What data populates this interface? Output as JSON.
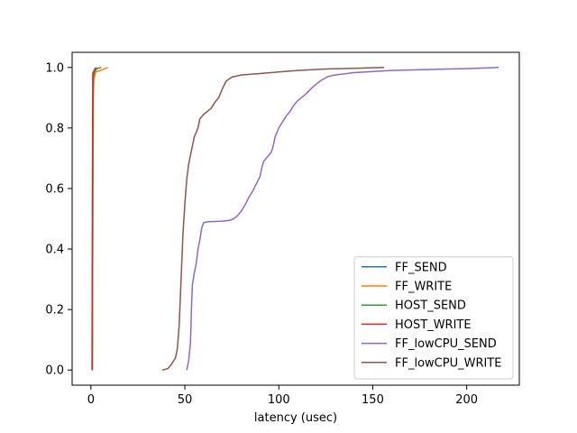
{
  "chart_data": {
    "type": "line",
    "title": "",
    "xlabel": "latency (usec)",
    "ylabel": "",
    "xlim": [
      -10,
      228
    ],
    "ylim": [
      -0.05,
      1.05
    ],
    "xticks": [
      0,
      50,
      100,
      150,
      200
    ],
    "xtick_labels": [
      "0",
      "50",
      "100",
      "150",
      "200"
    ],
    "yticks": [
      0.0,
      0.2,
      0.4,
      0.6,
      0.8,
      1.0
    ],
    "ytick_labels": [
      "0.0",
      "0.2",
      "0.4",
      "0.6",
      "0.8",
      "1.0"
    ],
    "grid": false,
    "legend_position": "lower-right",
    "series": [
      {
        "name": "FF_SEND",
        "color": "#1f77b4",
        "points": [
          [
            0.8,
            0.0
          ],
          [
            0.9,
            0.3
          ],
          [
            1.0,
            0.6
          ],
          [
            1.2,
            0.9
          ],
          [
            1.6,
            0.97
          ],
          [
            2.4,
            0.99
          ],
          [
            3.5,
            1.0
          ]
        ]
      },
      {
        "name": "FF_WRITE",
        "color": "#ff7f0e",
        "points": [
          [
            0.8,
            0.0
          ],
          [
            1.0,
            0.5
          ],
          [
            1.3,
            0.95
          ],
          [
            2.5,
            0.985
          ],
          [
            5,
            0.99
          ],
          [
            7,
            0.995
          ],
          [
            9,
            1.0
          ]
        ]
      },
      {
        "name": "HOST_SEND",
        "color": "#2ca02c",
        "points": [
          [
            0.7,
            0.0
          ],
          [
            0.9,
            0.6
          ],
          [
            1.2,
            0.97
          ],
          [
            2.5,
            0.995
          ],
          [
            5.5,
            1.0
          ]
        ]
      },
      {
        "name": "HOST_WRITE",
        "color": "#d62728",
        "points": [
          [
            0.6,
            0.0
          ],
          [
            0.8,
            0.6
          ],
          [
            1.0,
            0.98
          ],
          [
            2.5,
            1.0
          ]
        ]
      },
      {
        "name": "FF_lowCPU_SEND",
        "color": "#9467bd",
        "points": [
          [
            51,
            0.0
          ],
          [
            52,
            0.03
          ],
          [
            53,
            0.09
          ],
          [
            53.5,
            0.2
          ],
          [
            54,
            0.28
          ],
          [
            55,
            0.32
          ],
          [
            56,
            0.35
          ],
          [
            57,
            0.4
          ],
          [
            58,
            0.43
          ],
          [
            59,
            0.47
          ],
          [
            60,
            0.487
          ],
          [
            62,
            0.49
          ],
          [
            70,
            0.492
          ],
          [
            74,
            0.495
          ],
          [
            76,
            0.5
          ],
          [
            78,
            0.51
          ],
          [
            80,
            0.525
          ],
          [
            82,
            0.545
          ],
          [
            84,
            0.57
          ],
          [
            86,
            0.59
          ],
          [
            88,
            0.615
          ],
          [
            90,
            0.64
          ],
          [
            91,
            0.67
          ],
          [
            92,
            0.69
          ],
          [
            94,
            0.705
          ],
          [
            96,
            0.72
          ],
          [
            97,
            0.74
          ],
          [
            98,
            0.77
          ],
          [
            100,
            0.8
          ],
          [
            102,
            0.82
          ],
          [
            104,
            0.84
          ],
          [
            106,
            0.855
          ],
          [
            108,
            0.875
          ],
          [
            110,
            0.89
          ],
          [
            114,
            0.91
          ],
          [
            118,
            0.935
          ],
          [
            122,
            0.955
          ],
          [
            126,
            0.97
          ],
          [
            130,
            0.975
          ],
          [
            140,
            0.983
          ],
          [
            160,
            0.99
          ],
          [
            190,
            0.995
          ],
          [
            205,
            0.997
          ],
          [
            217,
            1.0
          ]
        ]
      },
      {
        "name": "FF_lowCPU_WRITE",
        "color": "#8c564b",
        "points": [
          [
            38,
            0.0
          ],
          [
            41,
            0.005
          ],
          [
            43,
            0.02
          ],
          [
            45,
            0.04
          ],
          [
            46,
            0.07
          ],
          [
            47,
            0.15
          ],
          [
            48,
            0.3
          ],
          [
            49,
            0.45
          ],
          [
            50,
            0.55
          ],
          [
            51,
            0.63
          ],
          [
            52,
            0.68
          ],
          [
            53,
            0.71
          ],
          [
            54,
            0.74
          ],
          [
            55,
            0.77
          ],
          [
            57,
            0.8
          ],
          [
            58,
            0.83
          ],
          [
            60,
            0.845
          ],
          [
            62,
            0.855
          ],
          [
            64,
            0.865
          ],
          [
            66,
            0.885
          ],
          [
            68,
            0.9
          ],
          [
            70,
            0.93
          ],
          [
            72,
            0.955
          ],
          [
            75,
            0.968
          ],
          [
            80,
            0.975
          ],
          [
            90,
            0.98
          ],
          [
            100,
            0.985
          ],
          [
            110,
            0.99
          ],
          [
            125,
            0.995
          ],
          [
            140,
            0.997
          ],
          [
            156,
            1.0
          ]
        ]
      }
    ]
  }
}
